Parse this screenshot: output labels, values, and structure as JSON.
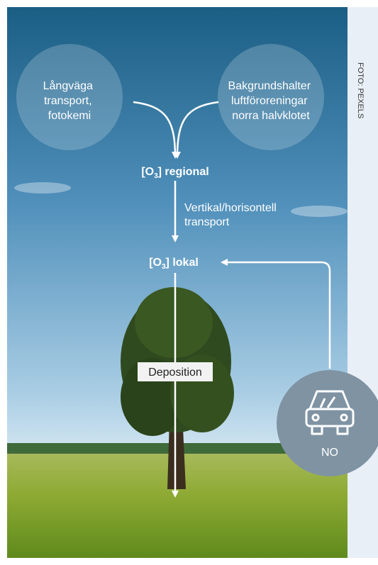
{
  "sources": [
    {
      "lines": [
        "Långväga",
        "transport,",
        "fotokemi"
      ]
    },
    {
      "lines": [
        "Bakgrundshalter",
        "luftföroreningar",
        "norra halvklotet"
      ]
    }
  ],
  "regional": {
    "prefix": "[O",
    "sub": "3",
    "suffix": "] regional"
  },
  "transport": {
    "lines": [
      "Vertikal/horisontell",
      "transport"
    ]
  },
  "local": {
    "prefix": "[O",
    "sub": "3",
    "suffix": "] lokal"
  },
  "deposition": "Deposition",
  "emission": "NO",
  "credit": "FOTO: PEXELS"
}
